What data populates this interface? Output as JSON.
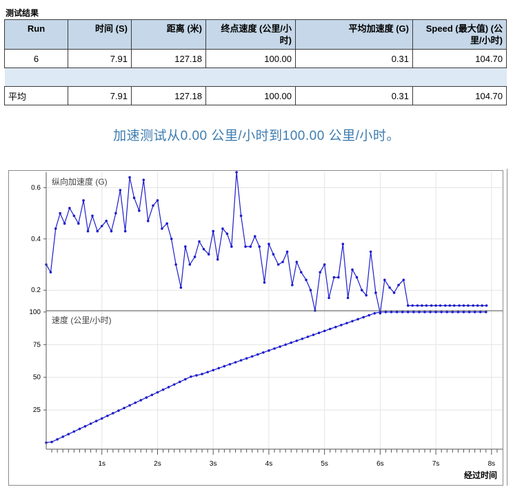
{
  "results": {
    "title": "测试结果",
    "columns": [
      "Run",
      "时间 (S)",
      "距离 (米)",
      "终点速度 (公里/小时)",
      "平均加速度 (G)",
      "Speed (最大值) (公里/小时)"
    ],
    "rows": [
      [
        "6",
        "7.91",
        "127.18",
        "100.00",
        "0.31",
        "104.70"
      ]
    ],
    "average": [
      "平均",
      "7.91",
      "127.18",
      "100.00",
      "0.31",
      "104.70"
    ]
  },
  "summary_text": "加速测试从0.00  公里/小时到100.00 公里/小时。",
  "colors": {
    "header_bg": "#c5d7e8",
    "separator_bg": "#dde9f4",
    "summary_text": "#3d7cb0",
    "series": "#1c1ccc"
  },
  "chart_data": [
    {
      "type": "line",
      "title": "纵向加速度 (G)",
      "xlabel": "经过时间",
      "ylabel": "",
      "xlim": [
        0,
        8.2
      ],
      "ylim": [
        0.12,
        0.66
      ],
      "yticks": [
        0.2,
        0.4,
        0.6
      ],
      "ytick_labels": [
        "0.2",
        "0.4",
        "0.6"
      ],
      "grid": true,
      "series": [
        {
          "x": [
            0,
            0.08,
            0.17,
            0.25,
            0.33,
            0.42,
            0.5,
            0.58,
            0.67,
            0.75,
            0.83,
            0.92,
            1.0,
            1.08,
            1.17,
            1.25,
            1.33,
            1.42,
            1.5,
            1.58,
            1.67,
            1.75,
            1.83,
            1.92,
            2.0,
            2.08,
            2.17,
            2.25,
            2.33,
            2.42,
            2.5,
            2.58,
            2.67,
            2.75,
            2.83,
            2.92,
            3.0,
            3.08,
            3.17,
            3.25,
            3.33,
            3.42,
            3.5,
            3.58,
            3.67,
            3.75,
            3.83,
            3.92,
            4.0,
            4.08,
            4.17,
            4.25,
            4.33,
            4.42,
            4.5,
            4.58,
            4.67,
            4.75,
            4.83,
            4.92,
            5.0,
            5.08,
            5.17,
            5.25,
            5.33,
            5.42,
            5.5,
            5.58,
            5.67,
            5.75,
            5.83,
            5.92,
            6.0,
            6.08,
            6.17,
            6.25,
            6.33,
            6.42,
            6.5,
            6.58,
            6.67,
            6.75,
            6.83,
            6.92,
            7.0,
            7.08,
            7.17,
            7.25,
            7.33,
            7.42,
            7.5,
            7.58,
            7.67,
            7.75,
            7.83,
            7.91
          ],
          "values": [
            0.3,
            0.27,
            0.44,
            0.5,
            0.46,
            0.52,
            0.49,
            0.46,
            0.55,
            0.43,
            0.49,
            0.43,
            0.45,
            0.47,
            0.43,
            0.5,
            0.59,
            0.43,
            0.64,
            0.56,
            0.51,
            0.63,
            0.47,
            0.53,
            0.55,
            0.44,
            0.46,
            0.4,
            0.3,
            0.21,
            0.37,
            0.3,
            0.33,
            0.39,
            0.36,
            0.34,
            0.43,
            0.32,
            0.44,
            0.42,
            0.37,
            0.66,
            0.49,
            0.37,
            0.37,
            0.41,
            0.37,
            0.23,
            0.38,
            0.34,
            0.3,
            0.31,
            0.35,
            0.22,
            0.31,
            0.27,
            0.24,
            0.2,
            0.12,
            0.27,
            0.3,
            0.17,
            0.25,
            0.25,
            0.38,
            0.17,
            0.28,
            0.25,
            0.2,
            0.18,
            0.35,
            0.19,
            0.11,
            0.24,
            0.21,
            0.19,
            0.22,
            0.24,
            0.14,
            0.14,
            0.14,
            0.14,
            0.14,
            0.14,
            0.14,
            0.14,
            0.14,
            0.14,
            0.14,
            0.14,
            0.14,
            0.14,
            0.14,
            0.14,
            0.14,
            0.14
          ]
        }
      ]
    },
    {
      "type": "line",
      "title": "速度 (公里/小时)",
      "xlabel": "经过时间",
      "ylabel": "",
      "xlim": [
        0,
        8.2
      ],
      "ylim": [
        -5,
        101
      ],
      "yticks": [
        25,
        50,
        75,
        100
      ],
      "ytick_labels": [
        "25",
        "50",
        "75",
        "100"
      ],
      "xticks": [
        1,
        2,
        3,
        4,
        5,
        6,
        7,
        8
      ],
      "xtick_labels": [
        "1s",
        "2s",
        "3s",
        "4s",
        "5s",
        "6s",
        "7s",
        "8s"
      ],
      "grid": true,
      "series": [
        {
          "x": [
            0,
            0.1,
            0.2,
            0.3,
            0.4,
            0.5,
            0.6,
            0.7,
            0.8,
            0.9,
            1.0,
            1.1,
            1.2,
            1.3,
            1.4,
            1.5,
            1.6,
            1.7,
            1.8,
            1.9,
            2.0,
            2.1,
            2.2,
            2.3,
            2.4,
            2.5,
            2.6,
            2.7,
            2.8,
            2.9,
            3.0,
            3.1,
            3.2,
            3.3,
            3.4,
            3.5,
            3.6,
            3.7,
            3.8,
            3.9,
            4.0,
            4.1,
            4.2,
            4.3,
            4.4,
            4.5,
            4.6,
            4.7,
            4.8,
            4.9,
            5.0,
            5.1,
            5.2,
            5.3,
            5.4,
            5.5,
            5.6,
            5.7,
            5.8,
            5.9,
            6.0,
            6.1,
            6.2,
            6.3,
            6.4,
            6.5,
            6.6,
            6.7,
            6.8,
            6.9,
            7.0,
            7.1,
            7.2,
            7.3,
            7.4,
            7.5,
            7.6,
            7.7,
            7.8,
            7.9
          ],
          "values": [
            0,
            0.5,
            2.5,
            4.5,
            6.5,
            8.5,
            10.5,
            12.5,
            14.5,
            16.5,
            18.5,
            20.5,
            22.5,
            24.5,
            26.5,
            28.5,
            30.5,
            32.5,
            34.5,
            36.5,
            38.5,
            40.5,
            42.5,
            44.5,
            46.5,
            48.5,
            50.5,
            51.5,
            52.5,
            54,
            55.5,
            57,
            58.5,
            60,
            61.5,
            63,
            64.5,
            66,
            67.5,
            69,
            70.5,
            72,
            73.5,
            75,
            76.5,
            78,
            79.5,
            81,
            82.5,
            84,
            85.5,
            87,
            88.5,
            90,
            91.5,
            93,
            94.5,
            96,
            97.5,
            99,
            100,
            100,
            100,
            100,
            100,
            100,
            100,
            100,
            100,
            100,
            100,
            100,
            100,
            100,
            100,
            100,
            100,
            100,
            100,
            100
          ]
        }
      ]
    }
  ]
}
